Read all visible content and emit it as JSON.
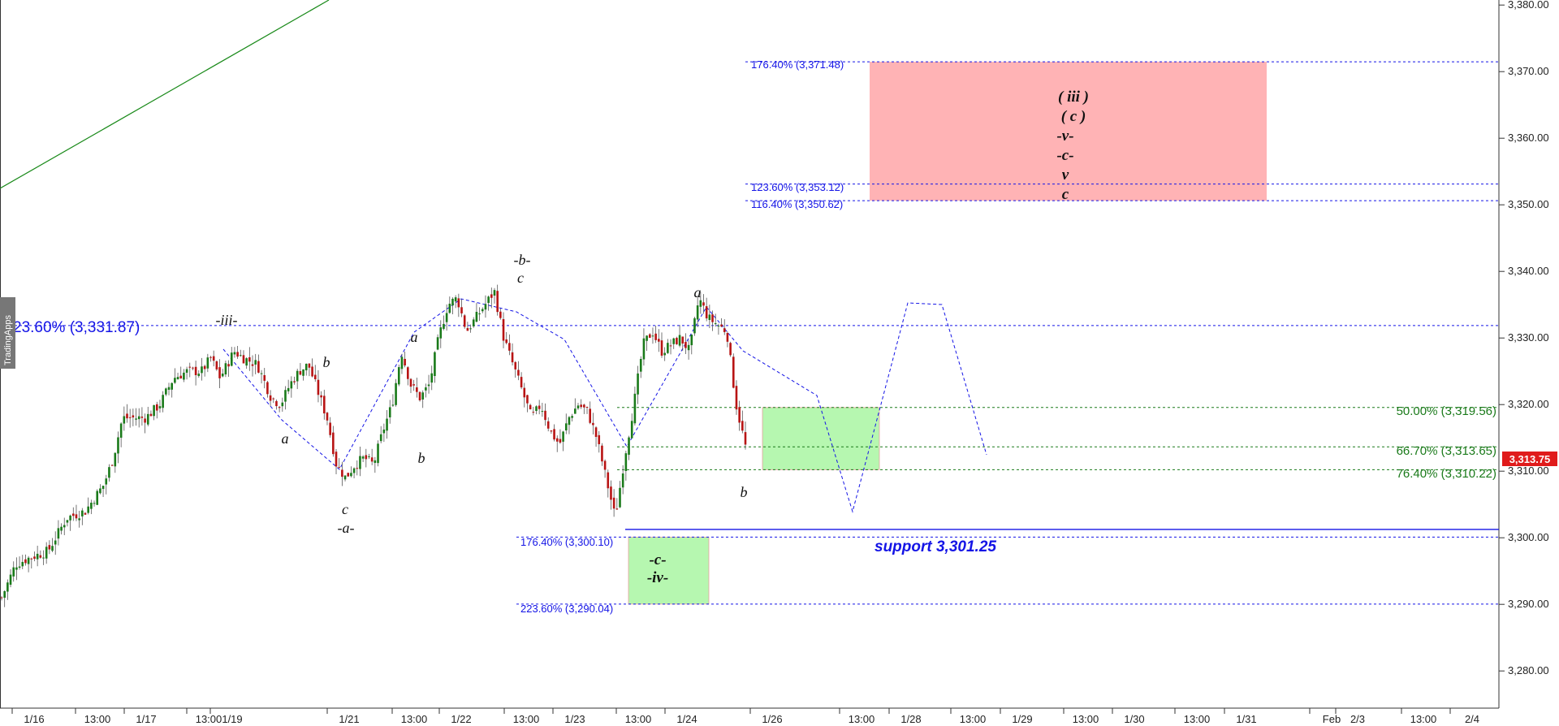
{
  "chart_data": {
    "type": "candlestick",
    "watermark": "TradingApps",
    "colors": {
      "up": "#1a7a1a",
      "down": "#b81414",
      "fib_blue": "#1414e6",
      "fib_green": "#1a7a1a",
      "target_red": "#ffb3b5",
      "target_green": "#b6f7b0",
      "price_tag": "#e01b1b"
    },
    "y_axis": {
      "range": [
        3275,
        3382
      ],
      "ticks": [
        "3,380.00",
        "3,370.00",
        "3,360.00",
        "3,350.00",
        "3,340.00",
        "3,330.00",
        "3,320.00",
        "3,310.00",
        "3,300.00",
        "3,290.00",
        "3,280.00"
      ],
      "tick_values": [
        3380,
        3370,
        3360,
        3350,
        3340,
        3330,
        3320,
        3310,
        3300,
        3290,
        3280
      ]
    },
    "x_axis": {
      "labels": [
        "1/16",
        "13:00",
        "1/17",
        "13:00",
        "1/19",
        "1/21",
        "13:00",
        "1/22",
        "13:00",
        "1/23",
        "13:00",
        "1/24",
        "1/26",
        "13:00",
        "1/28",
        "13:00",
        "1/29",
        "13:00",
        "1/30",
        "13:00",
        "1/31",
        "Feb",
        "2/3",
        "13:00",
        "2/4"
      ]
    },
    "current_price": "3,313.75",
    "price_path": [
      [
        0,
        3291
      ],
      [
        3,
        3296
      ],
      [
        6,
        3297
      ],
      [
        10,
        3298
      ],
      [
        14,
        3303
      ],
      [
        18,
        3304
      ],
      [
        20,
        3306
      ],
      [
        22,
        3308
      ],
      [
        24,
        3312
      ],
      [
        26,
        3318
      ],
      [
        28,
        3318
      ],
      [
        31,
        3318
      ],
      [
        34,
        3320
      ],
      [
        37,
        3324
      ],
      [
        40,
        3325
      ],
      [
        43,
        3325
      ],
      [
        45,
        3327
      ],
      [
        47,
        3324
      ],
      [
        50,
        3328
      ],
      [
        52,
        3327
      ],
      [
        55,
        3326
      ],
      [
        58,
        3321
      ],
      [
        60,
        3320
      ],
      [
        62,
        3323
      ],
      [
        64,
        3325
      ],
      [
        66,
        3326
      ],
      [
        68,
        3322
      ],
      [
        70,
        3318
      ],
      [
        72,
        3311
      ],
      [
        74,
        3309
      ],
      [
        76,
        3311
      ],
      [
        78,
        3312
      ],
      [
        80,
        3311
      ],
      [
        82,
        3316
      ],
      [
        84,
        3320
      ],
      [
        86,
        3328
      ],
      [
        88,
        3323
      ],
      [
        90,
        3321
      ],
      [
        92,
        3323
      ],
      [
        94,
        3330
      ],
      [
        96,
        3335
      ],
      [
        98,
        3336
      ],
      [
        100,
        3331
      ],
      [
        102,
        3333
      ],
      [
        104,
        3335
      ],
      [
        106,
        3337
      ],
      [
        108,
        3330
      ],
      [
        110,
        3326
      ],
      [
        112,
        3322
      ],
      [
        114,
        3318
      ],
      [
        116,
        3320
      ],
      [
        118,
        3316
      ],
      [
        120,
        3314
      ],
      [
        122,
        3318
      ],
      [
        124,
        3320
      ],
      [
        126,
        3319
      ],
      [
        128,
        3315
      ],
      [
        130,
        3309
      ],
      [
        132,
        3303
      ],
      [
        134,
        3312
      ],
      [
        136,
        3320
      ],
      [
        138,
        3329
      ],
      [
        140,
        3331
      ],
      [
        142,
        3328
      ],
      [
        144,
        3329
      ],
      [
        146,
        3330
      ],
      [
        148,
        3328
      ],
      [
        150,
        3336
      ],
      [
        152,
        3333
      ],
      [
        154,
        3332
      ],
      [
        156,
        3331
      ],
      [
        158,
        3320
      ],
      [
        160,
        3313.75
      ]
    ],
    "fib_levels": [
      {
        "label": "23.60% (3,331.87)",
        "value": 3331.87,
        "color": "blue",
        "style": "large"
      },
      {
        "label": "176.40% (3,371.48)",
        "value": 3371.48,
        "color": "blue"
      },
      {
        "label": "123.60% (3,353.12)",
        "value": 3353.12,
        "color": "blue"
      },
      {
        "label": "116.40% (3,350.62)",
        "value": 3350.62,
        "color": "blue"
      },
      {
        "label": "176.40% (3,300.10)",
        "value": 3300.1,
        "color": "blue"
      },
      {
        "label": "223.60% (3,290.04)",
        "value": 3290.04,
        "color": "blue"
      },
      {
        "label": "50.00% (3,319.56)",
        "value": 3319.56,
        "color": "green"
      },
      {
        "label": "66.70% (3,313.65)",
        "value": 3313.65,
        "color": "green"
      },
      {
        "label": "76.40% (3,310.22)",
        "value": 3310.22,
        "color": "green"
      }
    ],
    "support": {
      "label": "support 3,301.25",
      "value": 3301.25
    },
    "target_zones": [
      {
        "name": "upper-target",
        "from": 3350.62,
        "to": 3371.48,
        "color": "red",
        "labels": [
          "( iii )",
          "( c )",
          "-v-",
          "-c-",
          "v",
          "c"
        ]
      },
      {
        "name": "right-target",
        "from": 3310.22,
        "to": 3319.56,
        "color": "green"
      },
      {
        "name": "lower-target",
        "from": 3290.04,
        "to": 3300.1,
        "color": "green",
        "labels": [
          "-c-",
          "-iv-"
        ]
      }
    ],
    "wave_labels": [
      "-iii-",
      "a",
      "b",
      "c",
      "-a-",
      "a",
      "b",
      "-b-",
      "c",
      "a",
      "b"
    ]
  }
}
